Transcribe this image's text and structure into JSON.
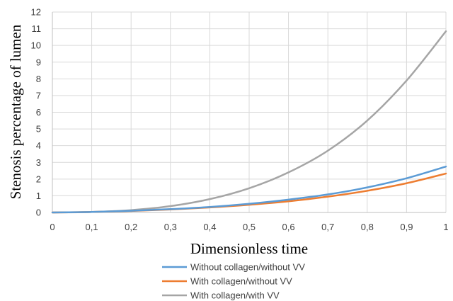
{
  "chart_data": {
    "type": "line",
    "xlabel": "Dimensionless time",
    "ylabel": "Stenosis percentage of lumen",
    "xlim": [
      0,
      1
    ],
    "ylim": [
      0,
      12
    ],
    "x_ticks": [
      "0",
      "0,1",
      "0,2",
      "0,3",
      "0,4",
      "0,5",
      "0,6",
      "0,7",
      "0,8",
      "0,9",
      "1"
    ],
    "y_ticks": [
      "0",
      "1",
      "2",
      "3",
      "4",
      "5",
      "6",
      "7",
      "8",
      "9",
      "10",
      "11",
      "12"
    ],
    "grid": true,
    "legend_position": "bottom",
    "x": [
      0,
      0.1,
      0.2,
      0.3,
      0.4,
      0.5,
      0.6,
      0.7,
      0.8,
      0.9,
      1.0
    ],
    "series": [
      {
        "name": "Without collagen/without VV",
        "color": "#5b9bd5",
        "values": [
          0,
          0.03,
          0.1,
          0.2,
          0.33,
          0.52,
          0.77,
          1.08,
          1.5,
          2.05,
          2.75
        ]
      },
      {
        "name": "With collagen/without VV",
        "color": "#ed7d31",
        "values": [
          0,
          0.03,
          0.09,
          0.18,
          0.3,
          0.46,
          0.67,
          0.95,
          1.3,
          1.75,
          2.33
        ]
      },
      {
        "name": "With collagen/with VV",
        "color": "#a5a5a5",
        "values": [
          0,
          0.03,
          0.14,
          0.38,
          0.8,
          1.45,
          2.4,
          3.7,
          5.5,
          7.9,
          10.85
        ]
      }
    ]
  }
}
